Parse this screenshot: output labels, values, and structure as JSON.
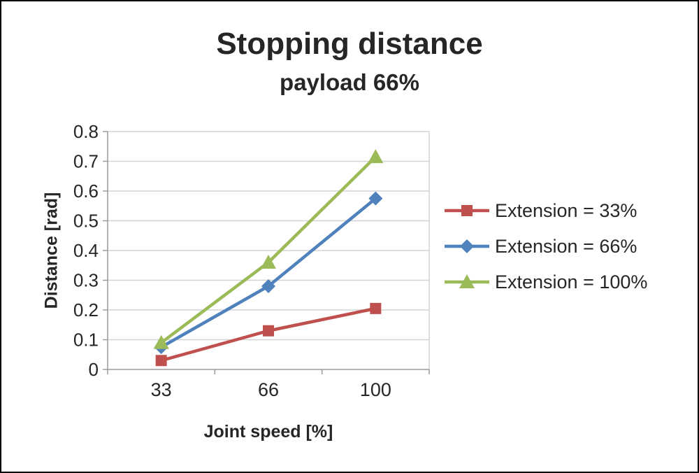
{
  "chart_data": {
    "type": "line",
    "title": "Stopping distance",
    "subtitle": "payload 66%",
    "xlabel": "Joint speed [%]",
    "ylabel": "Distance [rad]",
    "categories": [
      "33",
      "66",
      "100"
    ],
    "series": [
      {
        "name": "Extension = 33%",
        "color": "#C0504D",
        "marker": "square",
        "values": [
          0.03,
          0.13,
          0.205
        ]
      },
      {
        "name": "Extension = 66%",
        "color": "#4F81BD",
        "marker": "diamond",
        "values": [
          0.075,
          0.28,
          0.575
        ]
      },
      {
        "name": "Extension = 100%",
        "color": "#9BBB59",
        "marker": "triangle",
        "values": [
          0.09,
          0.36,
          0.715
        ]
      }
    ],
    "ylim": [
      0,
      0.8
    ],
    "ytick_step": 0.1,
    "grid": true,
    "legend_position": "right",
    "axis_color": "#9a9a9a",
    "gridline_color": "#d3d3d3"
  }
}
